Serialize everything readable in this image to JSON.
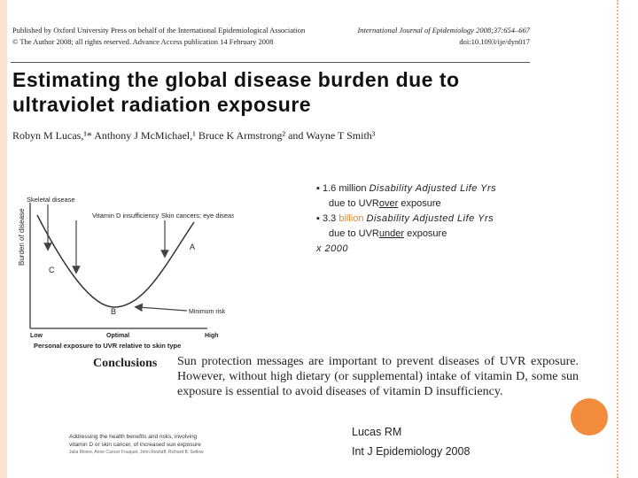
{
  "header": {
    "left_line1": "Published by Oxford University Press on behalf of the International Epidemiological Association",
    "left_line2": "© The Author 2008; all rights reserved. Advance Access publication 14 February 2008",
    "right_line1": "International Journal of Epidemiology 2008;37:654–667",
    "right_line2": "doi:10.1093/ije/dyn017"
  },
  "paper": {
    "title_line1": "Estimating the global disease burden due to",
    "title_line2": "ultraviolet radiation exposure",
    "authors": "Robyn M Lucas,¹* Anthony J McMichael,¹ Bruce K Armstrong² and Wayne T Smith³"
  },
  "figure": {
    "y_axis_label": "Burden of disease",
    "x_axis_label": "Personal exposure to UVR relative to skin type",
    "x_low": "Low",
    "x_mid": "Optimal",
    "x_high": "High",
    "label_skeletal": "Skeletal disease",
    "label_vitd": "Vitamin D insufficiency",
    "label_skin": "Skin cancers; eye disease",
    "label_minimum": "Minimum risk",
    "point_a": "A",
    "point_b": "B",
    "point_c": "C"
  },
  "points": {
    "p1_amount": "1.6 million",
    "p1_measure": "Disability Adjusted Life Yrs",
    "p1_cause_prefix": "due to UVR",
    "p1_cause_keyword": "over",
    "p1_cause_suffix": "exposure",
    "p2_amount_num": "3.3",
    "p2_amount_unit": "billion",
    "p2_measure": "Disability Adjusted Life Yrs",
    "p2_cause_prefix": "due to UVR",
    "p2_cause_keyword": "under",
    "p2_cause_suffix": "exposure",
    "multiplier": "x 2000"
  },
  "conclusions": {
    "heading": "Conclusions",
    "text": "Sun protection messages are important to prevent diseases of UVR exposure. However, without high dietary (or supplemental) intake of vitamin D, some sun exposure is essential to avoid diseases of vitamin D insufficiency."
  },
  "reference": {
    "author": "Lucas RM",
    "journal": "Int J Epidemiology 2008"
  },
  "thumbnail": {
    "line1": "Addressing the health benefits and risks, involving",
    "line2": "vitamin D or skin cancer, of increased sun exposure",
    "authors": "Julia Moore, Anne Cancer Fouquet, John Retzlaff, Richard B. Setlow"
  },
  "colors": {
    "accent_orange": "#f28c3c",
    "billion_orange": "#e8851c",
    "stripe": "#fbe3cf"
  }
}
